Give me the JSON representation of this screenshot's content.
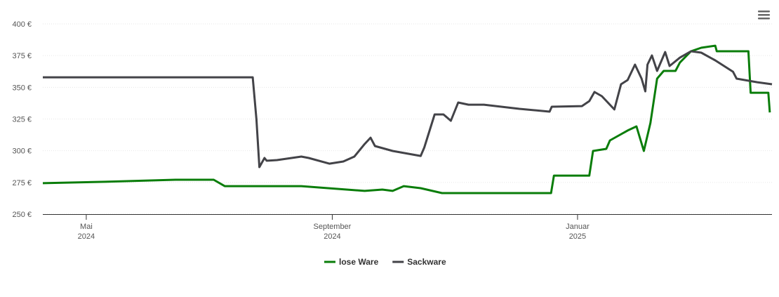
{
  "chart_data": {
    "type": "line",
    "xlim": [
      2024.274,
      2025.264
    ],
    "xticks": [
      {
        "value": 2024.333,
        "label": "Mai 2024"
      },
      {
        "value": 2024.667,
        "label": "September 2024"
      },
      {
        "value": 2025.0,
        "label": "Januar 2025"
      }
    ],
    "ylim": [
      250,
      400
    ],
    "yticks": [
      {
        "value": 250,
        "label": "250 €"
      },
      {
        "value": 275,
        "label": "275 €"
      },
      {
        "value": 300,
        "label": "300 €"
      },
      {
        "value": 325,
        "label": "325 €"
      },
      {
        "value": 350,
        "label": "350 €"
      },
      {
        "value": 375,
        "label": "375 €"
      },
      {
        "value": 400,
        "label": "400 €"
      }
    ],
    "grid": true,
    "legend": "bottom",
    "series": [
      {
        "name": "lose Ware",
        "color": "#0a7d0a",
        "x": [
          2024.274,
          2024.359,
          2024.454,
          2024.506,
          2024.521,
          2024.625,
          2024.711,
          2024.735,
          2024.749,
          2024.764,
          2024.787,
          2024.816,
          2024.964,
          2024.968,
          2025.016,
          2025.021,
          2025.039,
          2025.044,
          2025.068,
          2025.08,
          2025.09,
          2025.099,
          2025.108,
          2025.117,
          2025.133,
          2025.139,
          2025.154,
          2025.168,
          2025.187,
          2025.189,
          2025.232,
          2025.235,
          2025.259,
          2025.261
        ],
        "values": [
          274.4,
          275.5,
          277.1,
          277.1,
          272.1,
          272.1,
          268.3,
          269.4,
          268.3,
          272.1,
          270.5,
          266.6,
          266.6,
          280.4,
          280.4,
          299.8,
          301.5,
          308.1,
          315.9,
          319.2,
          299.8,
          321.9,
          356.8,
          362.9,
          362.9,
          369.5,
          378.4,
          381.2,
          382.8,
          378.4,
          378.4,
          345.7,
          345.7,
          330.2
        ]
      },
      {
        "name": "Sackware",
        "color": "#434348",
        "x": [
          2024.274,
          2024.559,
          2024.564,
          2024.568,
          2024.575,
          2024.578,
          2024.592,
          2024.625,
          2024.635,
          2024.663,
          2024.682,
          2024.697,
          2024.711,
          2024.719,
          2024.725,
          2024.749,
          2024.787,
          2024.792,
          2024.806,
          2024.818,
          2024.828,
          2024.838,
          2024.852,
          2024.873,
          2024.921,
          2024.962,
          2024.965,
          2025.006,
          2025.016,
          2025.023,
          2025.033,
          2025.05,
          2025.059,
          2025.068,
          2025.078,
          2025.087,
          2025.092,
          2025.095,
          2025.101,
          2025.108,
          2025.119,
          2025.125,
          2025.139,
          2025.154,
          2025.168,
          2025.187,
          2025.211,
          2025.216,
          2025.244,
          2025.264
        ],
        "values": [
          357.9,
          357.9,
          324.7,
          287.1,
          294.3,
          292.1,
          292.6,
          295.4,
          294.3,
          289.8,
          291.5,
          295.4,
          305.3,
          310.3,
          303.7,
          299.8,
          295.9,
          302.6,
          328.6,
          328.6,
          323.6,
          338.0,
          336.3,
          336.3,
          333.0,
          330.8,
          334.7,
          335.2,
          339.1,
          346.3,
          343.0,
          332.5,
          352.4,
          355.7,
          367.9,
          356.8,
          346.8,
          367.9,
          375.1,
          362.9,
          377.8,
          366.8,
          373.4,
          378.4,
          377.3,
          371.2,
          362.3,
          356.8,
          354.0,
          352.4
        ]
      }
    ]
  }
}
